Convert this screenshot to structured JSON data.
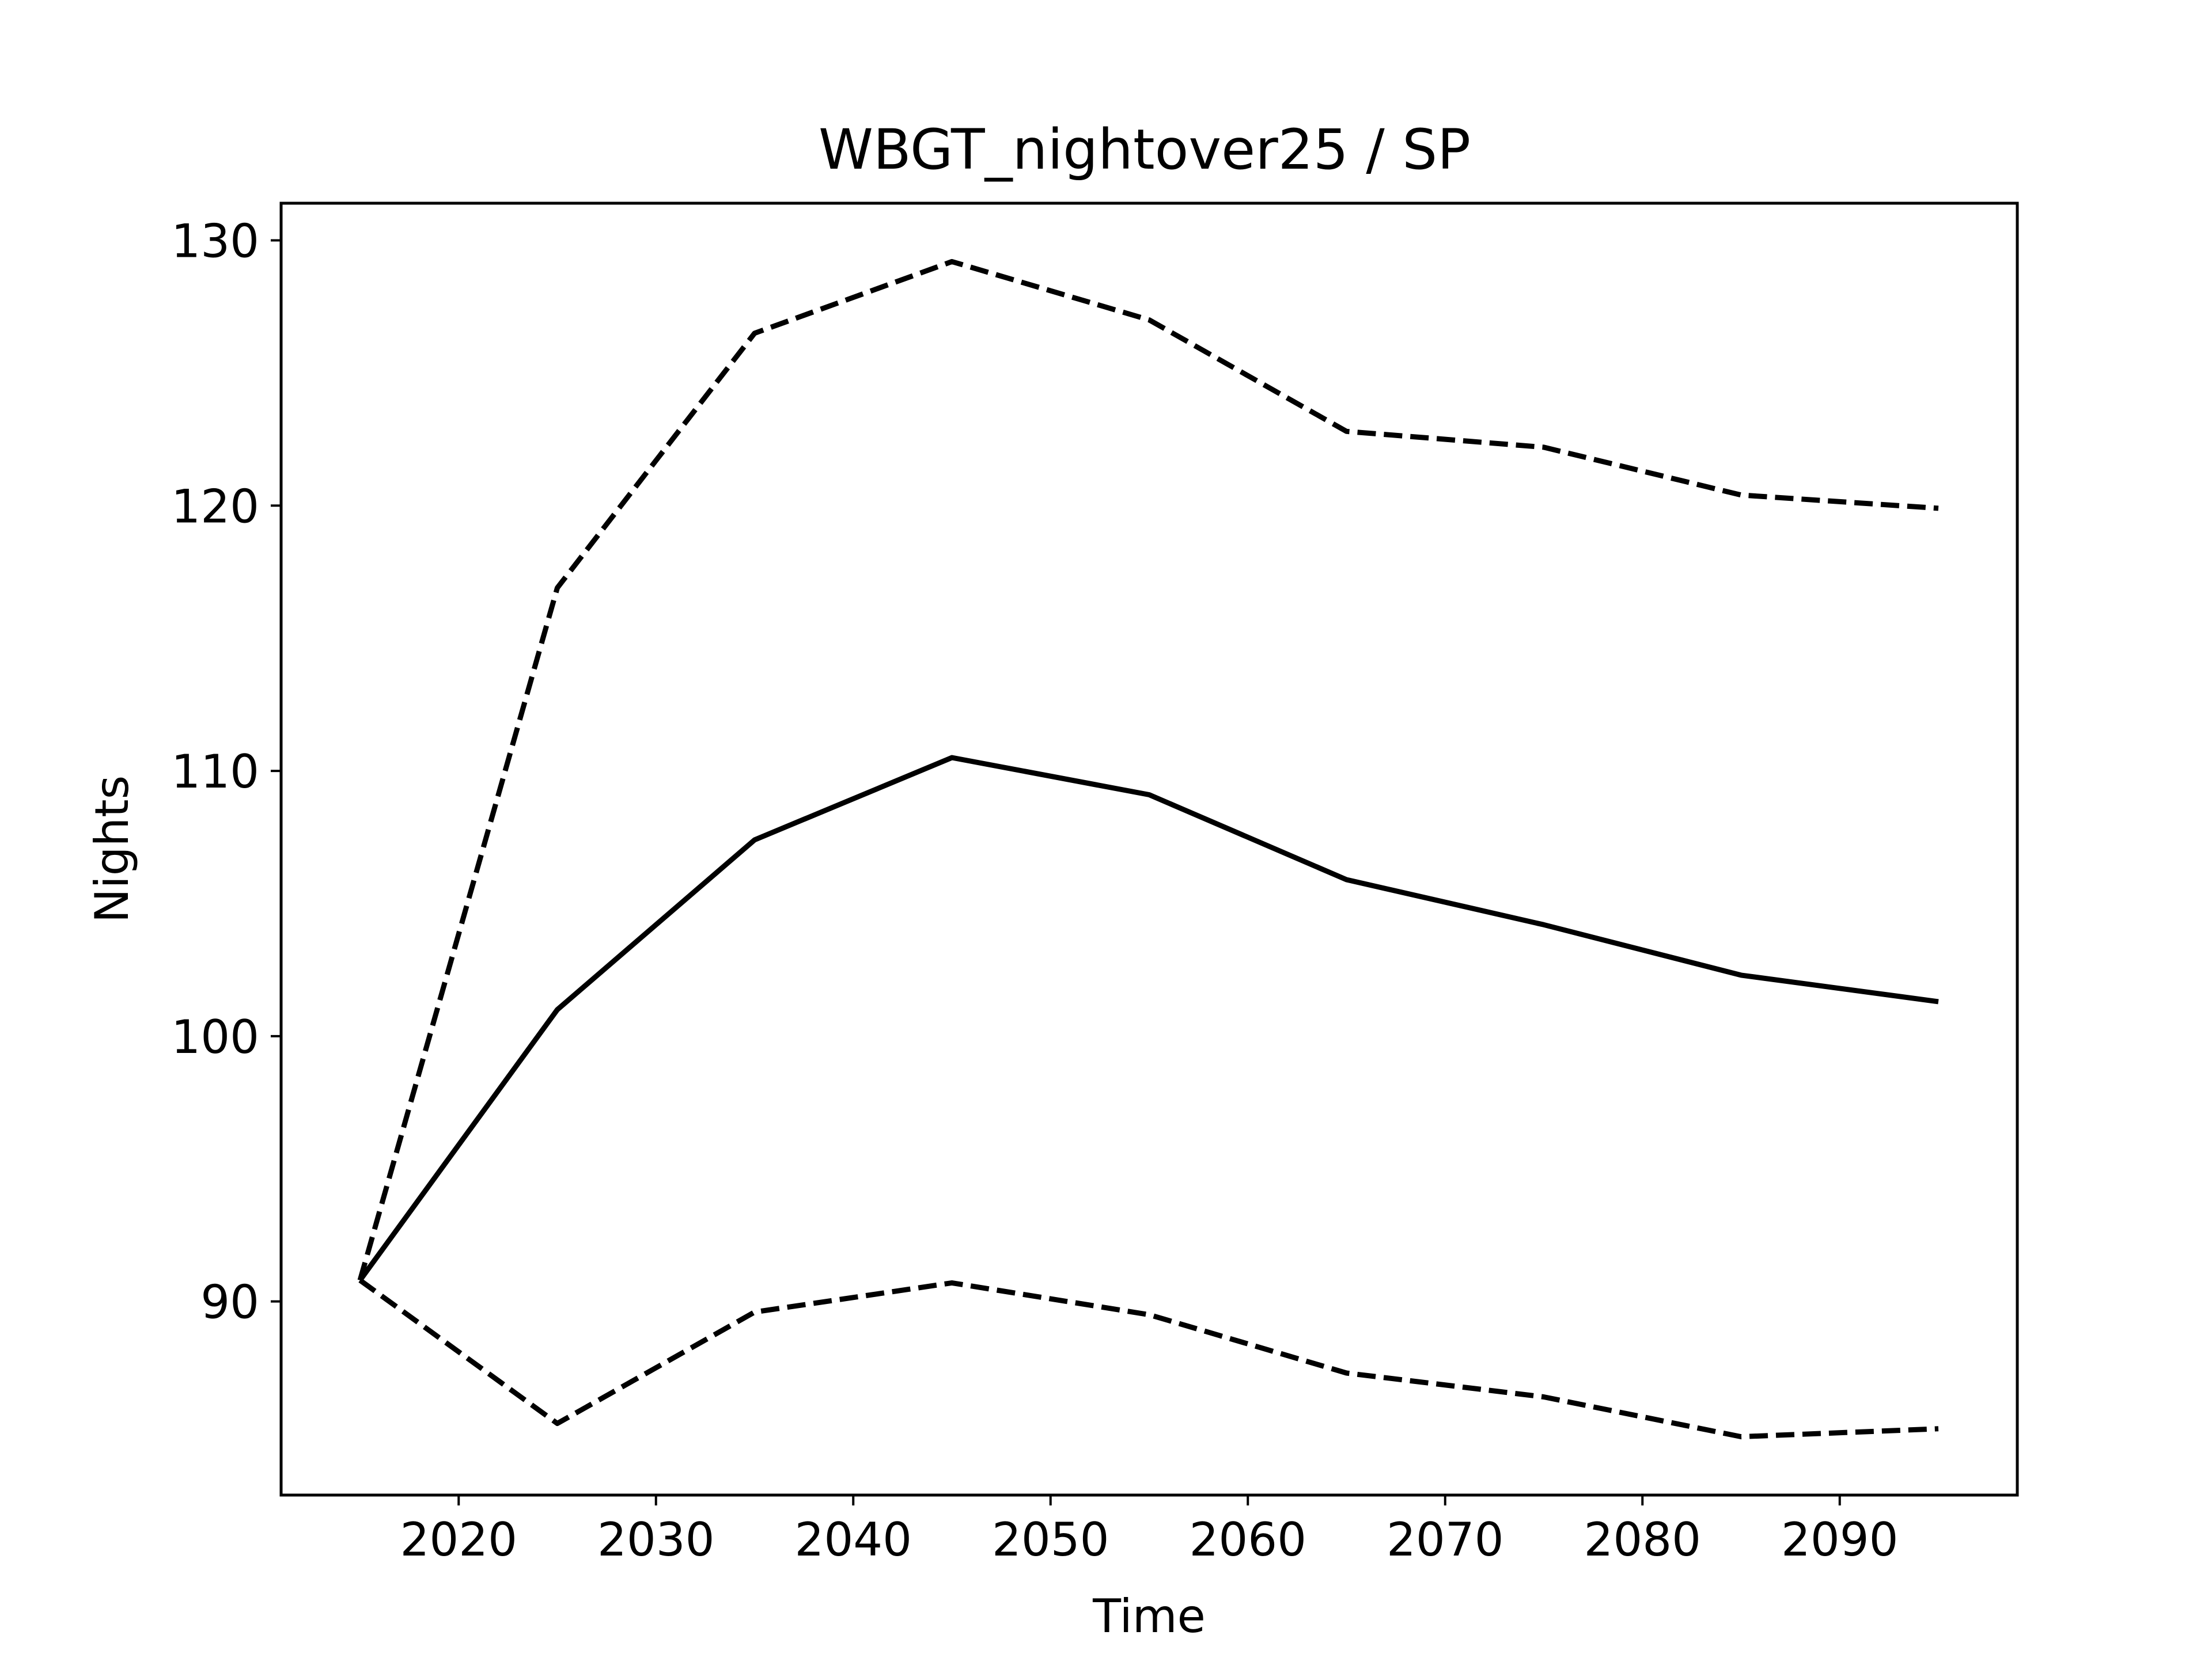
{
  "chart_data": {
    "type": "line",
    "title": "WBGT_nightover25 / SP",
    "xlabel": "Time",
    "ylabel": "Nights",
    "x": [
      2015,
      2025,
      2035,
      2045,
      2055,
      2065,
      2075,
      2085,
      2095
    ],
    "xlim": [
      2011,
      2099
    ],
    "ylim": [
      82.7,
      131.4
    ],
    "xticks": [
      2020,
      2030,
      2040,
      2050,
      2060,
      2070,
      2080,
      2090
    ],
    "yticks": [
      90,
      100,
      110,
      120,
      130
    ],
    "grid": false,
    "series": [
      {
        "style": "solid",
        "color": "#000000",
        "values": [
          90.8,
          101.0,
          107.4,
          110.5,
          109.1,
          105.9,
          104.2,
          102.3,
          101.3
        ]
      },
      {
        "style": "dashed",
        "color": "#000000",
        "values": [
          90.8,
          116.9,
          126.5,
          129.2,
          127.0,
          122.8,
          122.2,
          120.4,
          119.9
        ]
      },
      {
        "style": "dashed",
        "color": "#000000",
        "values": [
          90.8,
          85.4,
          89.6,
          90.7,
          89.5,
          87.3,
          86.4,
          84.9,
          85.2
        ]
      }
    ]
  }
}
